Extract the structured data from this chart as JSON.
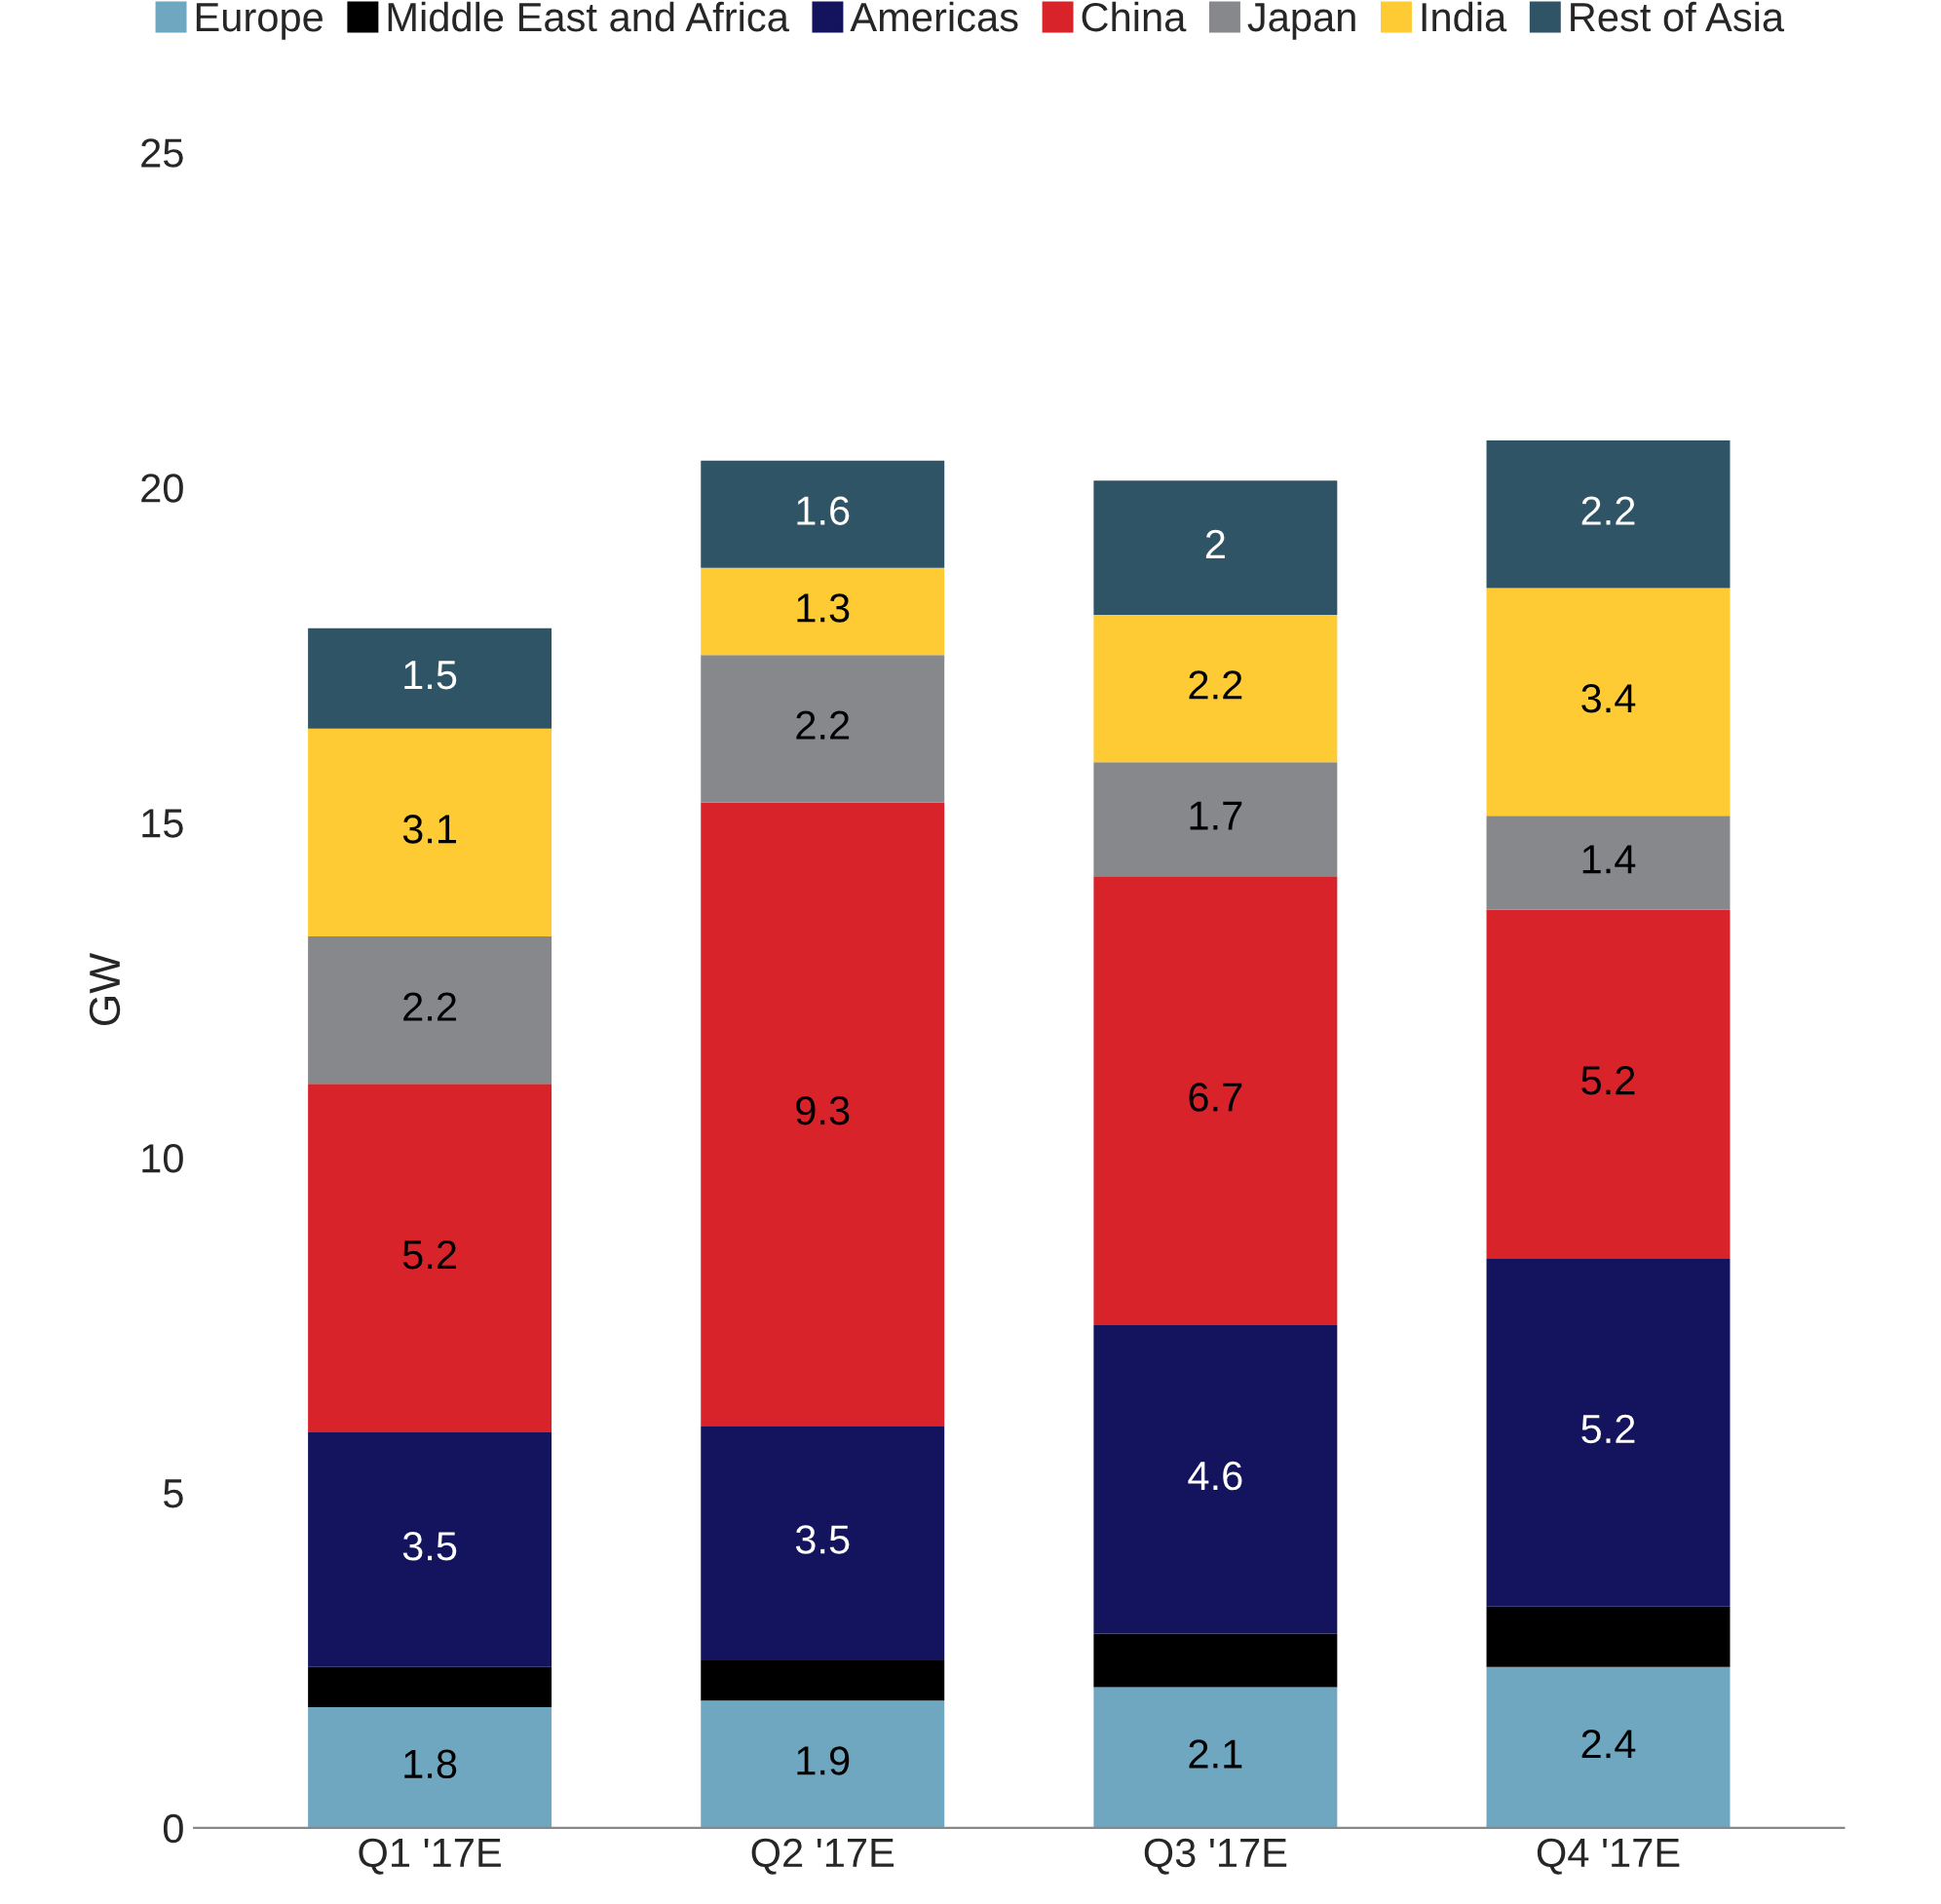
{
  "chart_data": {
    "type": "bar",
    "stacked": true,
    "ylabel": "GW",
    "categories": [
      "Q1 '17E",
      "Q2 '17E",
      "Q3 '17E",
      "Q4 '17E"
    ],
    "ylim": [
      0,
      25
    ],
    "yticks": [
      0,
      5,
      10,
      15,
      20,
      25
    ],
    "grid": false,
    "legend": "top",
    "series": [
      {
        "name": "Europe",
        "color": "#6fa6c0",
        "values": [
          1.8,
          1.9,
          2.1,
          2.4
        ],
        "value_labels": [
          "1.8",
          "1.9",
          "2.1",
          "2.4"
        ]
      },
      {
        "name": "Middle East and Africa",
        "color": "#000000",
        "values": [
          0.6,
          0.6,
          0.8,
          0.9
        ],
        "value_labels": [
          null,
          null,
          null,
          null
        ]
      },
      {
        "name": "Americas",
        "color": "#13135e",
        "values": [
          3.5,
          3.5,
          4.6,
          5.2
        ],
        "value_labels": [
          "3.5",
          "3.5",
          "4.6",
          "5.2"
        ]
      },
      {
        "name": "China",
        "color": "#d9232a",
        "values": [
          5.2,
          9.3,
          6.7,
          5.2
        ],
        "value_labels": [
          "5.2",
          "9.3",
          "6.7",
          "5.2"
        ]
      },
      {
        "name": "Japan",
        "color": "#87888c",
        "values": [
          2.2,
          2.2,
          1.7,
          1.4
        ],
        "value_labels": [
          "2.2",
          "2.2",
          "1.7",
          "1.4"
        ]
      },
      {
        "name": "India",
        "color": "#fecb34",
        "values": [
          3.1,
          1.3,
          2.2,
          3.4
        ],
        "value_labels": [
          "3.1",
          "1.3",
          "2.2",
          "3.4"
        ]
      },
      {
        "name": "Rest of Asia",
        "color": "#2f5466",
        "values": [
          1.5,
          1.6,
          2,
          2.2
        ],
        "value_labels": [
          "1.5",
          "1.6",
          "2",
          "2.2"
        ]
      }
    ]
  }
}
